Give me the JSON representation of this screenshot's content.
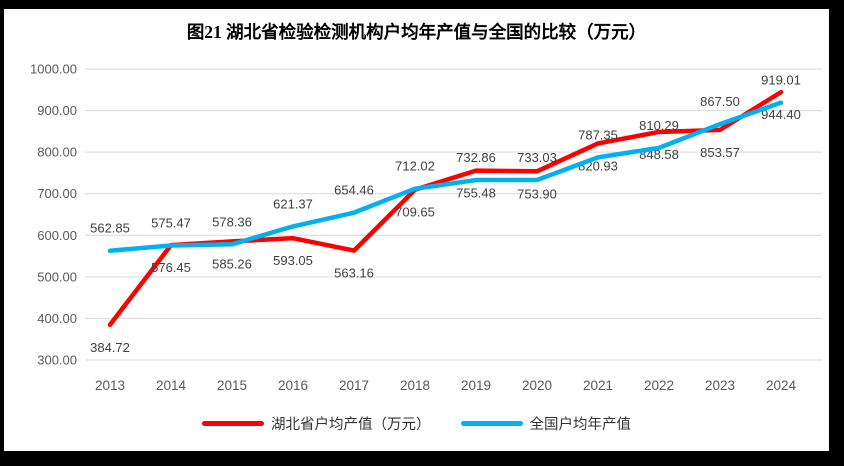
{
  "window": {
    "background": "#FFFFFF",
    "frame_color": "#000000"
  },
  "chart_data": {
    "type": "line",
    "title": "图21 湖北省检验检测机构户均年产值与全国的比较（万元）",
    "categories": [
      "2013",
      "2014",
      "2015",
      "2016",
      "2017",
      "2018",
      "2019",
      "2020",
      "2021",
      "2022",
      "2023",
      "2024"
    ],
    "series": [
      {
        "name": "湖北省户均产值（万元）",
        "color": "#FF0000",
        "label_position": "below",
        "values": [
          384.72,
          576.45,
          585.26,
          593.05,
          563.16,
          709.65,
          755.48,
          753.9,
          820.93,
          848.58,
          853.57,
          944.4
        ]
      },
      {
        "name": "全国户均年产值",
        "color": "#00B0F0",
        "label_position": "above",
        "values": [
          562.85,
          575.47,
          578.36,
          621.37,
          654.46,
          712.02,
          732.86,
          733.03,
          787.35,
          810.29,
          867.5,
          919.01
        ]
      }
    ],
    "ylim": [
      300,
      1000
    ],
    "ytick_step": 100,
    "ytick_labels": [
      "300.00",
      "400.00",
      "500.00",
      "600.00",
      "700.00",
      "800.00",
      "900.00",
      "1000.00"
    ],
    "value_decimals": 2,
    "grid": true,
    "legend_position": "bottom",
    "colors": {
      "gridline": "#D9D9D9",
      "axis_text": "#595959",
      "data_label": "#3F3F3F",
      "title_text": "#000000",
      "legend_text": "#333333"
    }
  }
}
